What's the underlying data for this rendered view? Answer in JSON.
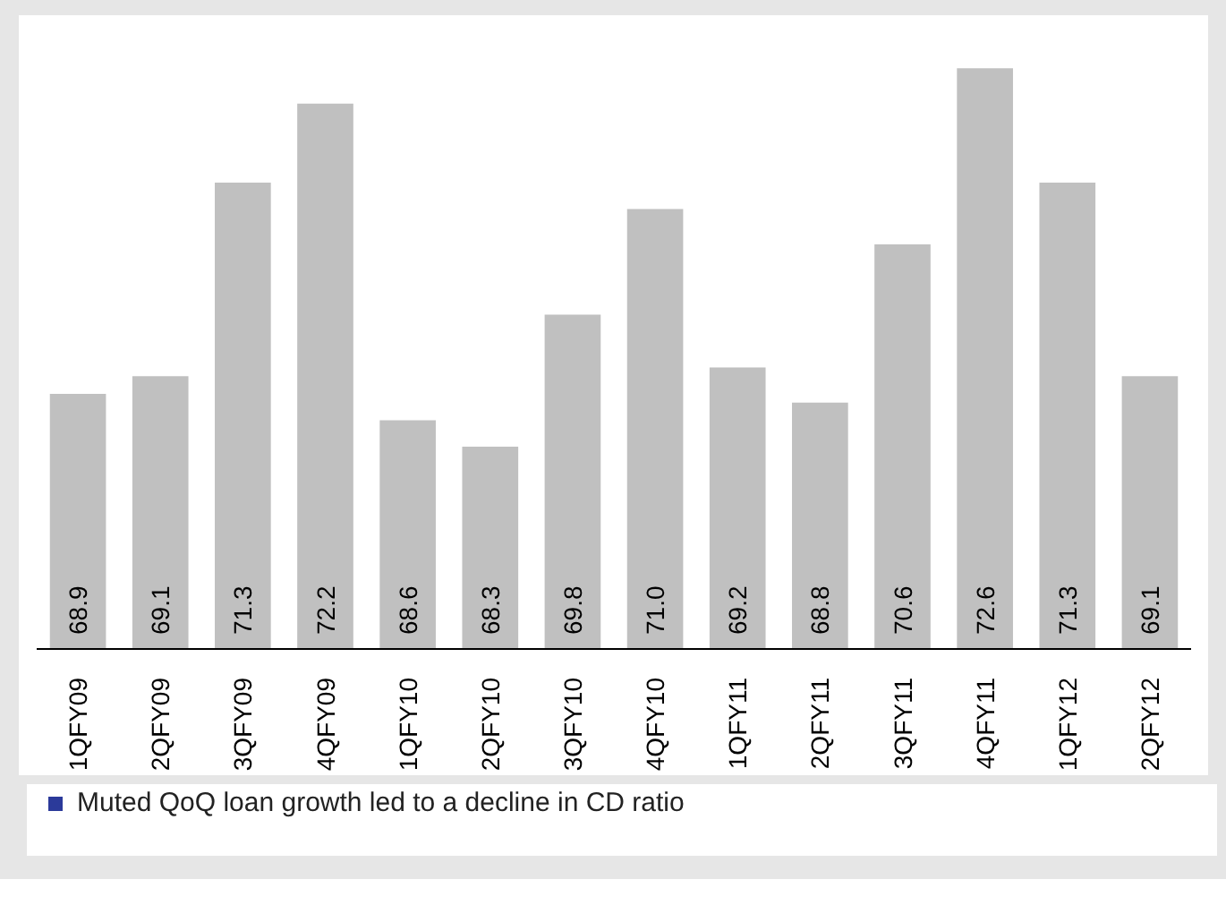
{
  "chart_data": {
    "type": "bar",
    "categories": [
      "1QFY09",
      "2QFY09",
      "3QFY09",
      "4QFY09",
      "1QFY10",
      "2QFY10",
      "3QFY10",
      "4QFY10",
      "1QFY11",
      "2QFY11",
      "3QFY11",
      "4QFY11",
      "1QFY12",
      "2QFY12"
    ],
    "values": [
      68.9,
      69.1,
      71.3,
      72.2,
      68.6,
      68.3,
      69.8,
      71.0,
      69.2,
      68.8,
      70.6,
      72.6,
      71.3,
      69.1
    ],
    "value_labels": [
      "68.9",
      "69.1",
      "71.3",
      "72.2",
      "68.6",
      "68.3",
      "69.8",
      "71.0",
      "69.2",
      "68.8",
      "70.6",
      "72.6",
      "71.3",
      "69.1"
    ],
    "color": "#c0c0c0",
    "ylim": [
      66,
      73
    ],
    "grid": false,
    "annotations": [
      "Muted QoQ loan growth led to a decline in CD ratio"
    ]
  }
}
